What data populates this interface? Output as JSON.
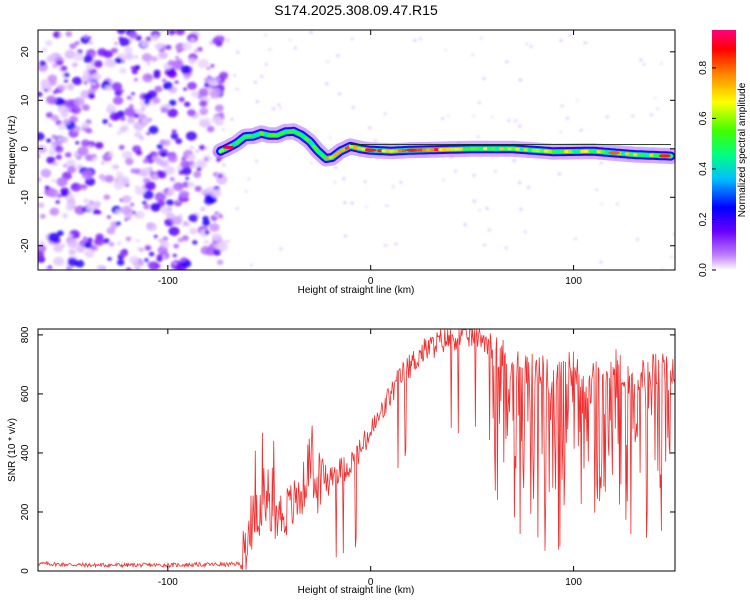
{
  "figure_title": "S174.2025.308.09.47.R15",
  "chart_data": [
    {
      "type": "heatmap",
      "title": "S174.2025.308.09.47.R15",
      "xlabel": "Height of straight line (km)",
      "ylabel": "Frequency (Hz)",
      "xlim": [
        -164,
        150
      ],
      "ylim": [
        -25,
        24.5
      ],
      "xticks": [
        -100,
        0,
        100
      ],
      "yticks": [
        -20,
        -10,
        0,
        10,
        20
      ],
      "colorbar": {
        "label": "Normalized spectral amplitude",
        "range": [
          0.0,
          0.95
        ],
        "ticks": [
          0.0,
          0.2,
          0.4,
          0.6,
          0.8
        ],
        "colormap": [
          "#ffffff",
          "#8b00ff",
          "#0000ff",
          "#00ffff",
          "#00ff00",
          "#ffff00",
          "#ff8000",
          "#ff0000",
          "#ff0080"
        ]
      },
      "noise_region_x": [
        -164,
        -74
      ],
      "ridge": {
        "x": [
          -74,
          -70,
          -66,
          -62,
          -58,
          -54,
          -50,
          -46,
          -42,
          -38,
          -34,
          -30,
          -26,
          -22,
          -19,
          -15,
          -10,
          -5,
          0,
          10,
          20,
          30,
          50,
          70,
          90,
          110,
          130,
          148
        ],
        "y": [
          -0.5,
          0.3,
          1.2,
          2.5,
          2.6,
          3.2,
          2.8,
          2.8,
          3.5,
          3.6,
          2.8,
          1.5,
          -0.5,
          -2.0,
          -1.8,
          -0.5,
          0.5,
          0.0,
          -0.3,
          -0.5,
          -0.3,
          -0.2,
          0.0,
          0.0,
          -0.6,
          -0.5,
          -1.2,
          -1.5
        ]
      }
    },
    {
      "type": "line",
      "title": "",
      "xlabel": "Height of straight line (km)",
      "ylabel": "SNR (10 * v/v)",
      "xlim": [
        -164,
        150
      ],
      "ylim": [
        0,
        820
      ],
      "xticks": [
        -100,
        0,
        100
      ],
      "yticks": [
        0,
        200,
        400,
        600,
        800
      ],
      "series": [
        {
          "name": "SNR",
          "color": "#f03030",
          "x": [
            -164,
            -140,
            -120,
            -100,
            -80,
            -70,
            -64,
            -60,
            -56,
            -52,
            -48,
            -44,
            -40,
            -36,
            -32,
            -30,
            -28,
            -24,
            -20,
            -16,
            -12,
            -8,
            -4,
            0,
            5,
            10,
            15,
            20,
            25,
            30,
            35,
            40,
            45,
            50,
            55,
            60,
            65,
            70,
            80,
            90,
            100,
            110,
            120,
            130,
            140,
            150
          ],
          "y": [
            25,
            20,
            20,
            20,
            22,
            22,
            25,
            120,
            220,
            180,
            200,
            190,
            210,
            240,
            300,
            400,
            260,
            300,
            330,
            340,
            350,
            380,
            420,
            470,
            530,
            600,
            660,
            700,
            740,
            760,
            780,
            790,
            795,
            800,
            795,
            760,
            730,
            700,
            680,
            660,
            690,
            650,
            700,
            640,
            690,
            660
          ]
        }
      ]
    }
  ]
}
